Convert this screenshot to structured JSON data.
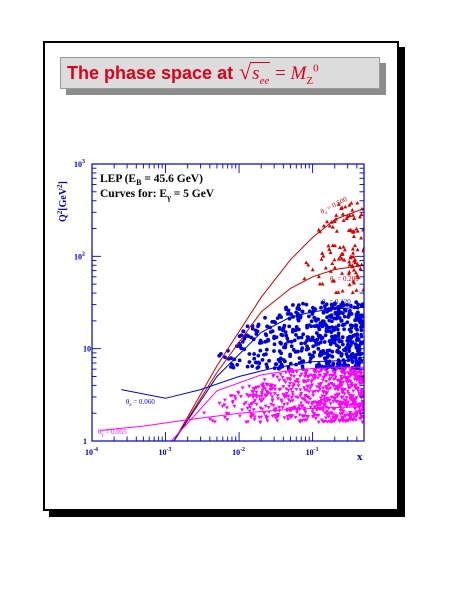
{
  "title": {
    "text": "The phase space at",
    "math": {
      "root": "s",
      "root_sub": "ee",
      "eq": "=",
      "rhs": "M",
      "rhs_sub": "Z",
      "rhs_sup": "0"
    }
  },
  "chart_data": {
    "type": "scatter",
    "xlabel": "x",
    "ylabel": "Q",
    "ylabel_sup": "2",
    "ylabel_unit": "[GeV",
    "ylabel_unit_sup": "2",
    "ylabel_close": "]",
    "xscale": "log",
    "yscale": "log",
    "xlim": [
      0.0001,
      0.5
    ],
    "ylim": [
      1,
      1000
    ],
    "xticks": [
      {
        "base": "10",
        "exp": "-4",
        "value": 0.0001
      },
      {
        "base": "10",
        "exp": "-3",
        "value": 0.001
      },
      {
        "base": "10",
        "exp": "-2",
        "value": 0.01
      },
      {
        "base": "10",
        "exp": "-1",
        "value": 0.1
      }
    ],
    "yticks": [
      {
        "base": "1",
        "exp": "",
        "value": 1
      },
      {
        "base": "10",
        "exp": "",
        "value": 10
      },
      {
        "base": "10",
        "exp": "2",
        "value": 100
      },
      {
        "base": "10",
        "exp": "3",
        "value": 1000
      }
    ],
    "annotations": {
      "line1_main": "LEP (E",
      "line1_sub": "B",
      "line1_rest": " = 45.6 GeV)",
      "line2_main": "Curves for: E",
      "line2_sub": "γ",
      "line2_rest": " = 5 GeV"
    },
    "series": [
      {
        "color": "#dd0000",
        "marker": "triangle",
        "x_range": [
          0.06,
          0.5
        ],
        "y_range": [
          40,
          380
        ],
        "count": 110
      },
      {
        "color": "#0000dd",
        "marker": "circle",
        "x_range": [
          0.004,
          0.5
        ],
        "y_range": [
          6,
          32
        ],
        "count": 520
      },
      {
        "color": "#ff00ff",
        "marker": "triangle-down",
        "x_range": [
          0.003,
          0.5
        ],
        "y_range": [
          1.6,
          6
        ],
        "count": 680
      }
    ],
    "curves": [
      {
        "label": "θ",
        "label_sub": "e",
        "label_val": " = 0.500",
        "color": "#cc0000",
        "x": [
          0.0013,
          0.005,
          0.02,
          0.05,
          0.1,
          0.2,
          0.5
        ],
        "y": [
          1,
          6.5,
          36,
          92,
          160,
          250,
          330
        ]
      },
      {
        "label": "θ",
        "label_sub": "e",
        "label_val": " = 0.200",
        "color": "#cc0000",
        "x": [
          0.0013,
          0.005,
          0.02,
          0.05,
          0.1,
          0.2,
          0.5
        ],
        "y": [
          1,
          5.5,
          25,
          45,
          60,
          72,
          80
        ]
      },
      {
        "label": "θ",
        "label_sub": "e",
        "label_val": " = 0.120",
        "color": "#0000cc",
        "x": [
          0.0013,
          0.005,
          0.02,
          0.05,
          0.1,
          0.2,
          0.5
        ],
        "y": [
          1,
          5,
          15,
          22,
          25,
          27,
          28
        ]
      },
      {
        "label": "θ",
        "label_sub": "e",
        "label_val": " = 0.060",
        "color": "#0000cc",
        "x": [
          0.00025,
          0.001,
          0.003,
          0.01,
          0.03,
          0.1,
          0.5
        ],
        "y": [
          3.6,
          2.9,
          3.6,
          5.0,
          6.2,
          7.2,
          7.6
        ]
      },
      {
        "label": "θ",
        "label_sub": "γ",
        "label_val": " = 0.055",
        "color": "#ff00ff",
        "x": [
          0.0012,
          0.005,
          0.02,
          0.05,
          0.1,
          0.3,
          0.5
        ],
        "y": [
          1,
          3.5,
          5.2,
          5.8,
          6.1,
          6.3,
          6.3
        ]
      },
      {
        "label": "θ",
        "label_sub": "γ",
        "label_val": " = 0.033",
        "color": "#ff00ff",
        "x": [
          0.00013,
          0.0005,
          0.002,
          0.01,
          0.05,
          0.2,
          0.5
        ],
        "y": [
          1.3,
          1.45,
          1.7,
          2.0,
          2.2,
          2.3,
          2.35
        ]
      }
    ]
  },
  "colors": {
    "title": "#e0001b",
    "axis": "#0000cc",
    "frame": "#000000"
  }
}
